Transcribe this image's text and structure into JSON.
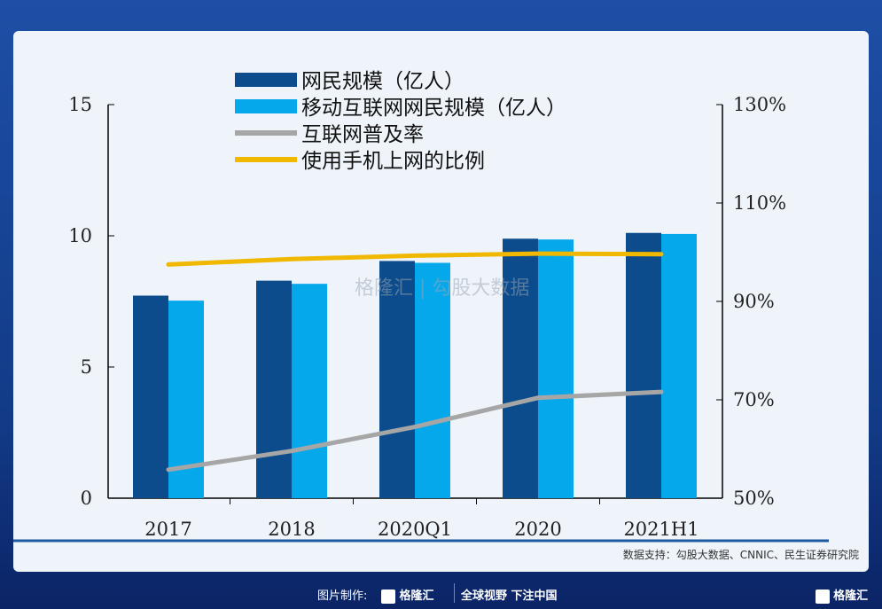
{
  "chart_data": {
    "type": "bar+line",
    "categories": [
      "2017",
      "2018",
      "2020Q1",
      "2020",
      "2021H1"
    ],
    "series": [
      {
        "name": "网民规模（亿人）",
        "type": "bar",
        "axis": "left",
        "color": "#0d4c8c",
        "values": [
          7.72,
          8.29,
          9.04,
          9.89,
          10.11
        ]
      },
      {
        "name": "移动互联网网民规模（亿人）",
        "type": "bar",
        "axis": "left",
        "color": "#06a8ec",
        "values": [
          7.53,
          8.17,
          8.97,
          9.86,
          10.07
        ]
      },
      {
        "name": "互联网普及率",
        "type": "line",
        "axis": "right",
        "color": "#a6a6a6",
        "values": [
          55.8,
          59.6,
          64.5,
          70.4,
          71.6
        ]
      },
      {
        "name": "使用手机上网的比例",
        "type": "line",
        "axis": "right",
        "color": "#f0b800",
        "values": [
          97.5,
          98.6,
          99.3,
          99.7,
          99.6
        ]
      }
    ],
    "left_axis": {
      "ylim": [
        0,
        15
      ],
      "ticks": [
        "0",
        "5",
        "10",
        "15"
      ]
    },
    "right_axis": {
      "ylim": [
        50,
        130
      ],
      "ticks": [
        "50%",
        "70%",
        "90%",
        "110%",
        "130%"
      ]
    },
    "legend_position": "top-center",
    "grid": false
  },
  "source": "数据支持：勾股大数据、CNNIC、民生证券研究院",
  "watermark": "格隆汇 www.gelonghui.com 勾股大数据 www.gogudata.com",
  "footer": {
    "made_by": "图片制作:",
    "brand": "格隆汇",
    "slogan": "全球视野 下注中国",
    "brand_right": "格隆汇"
  }
}
